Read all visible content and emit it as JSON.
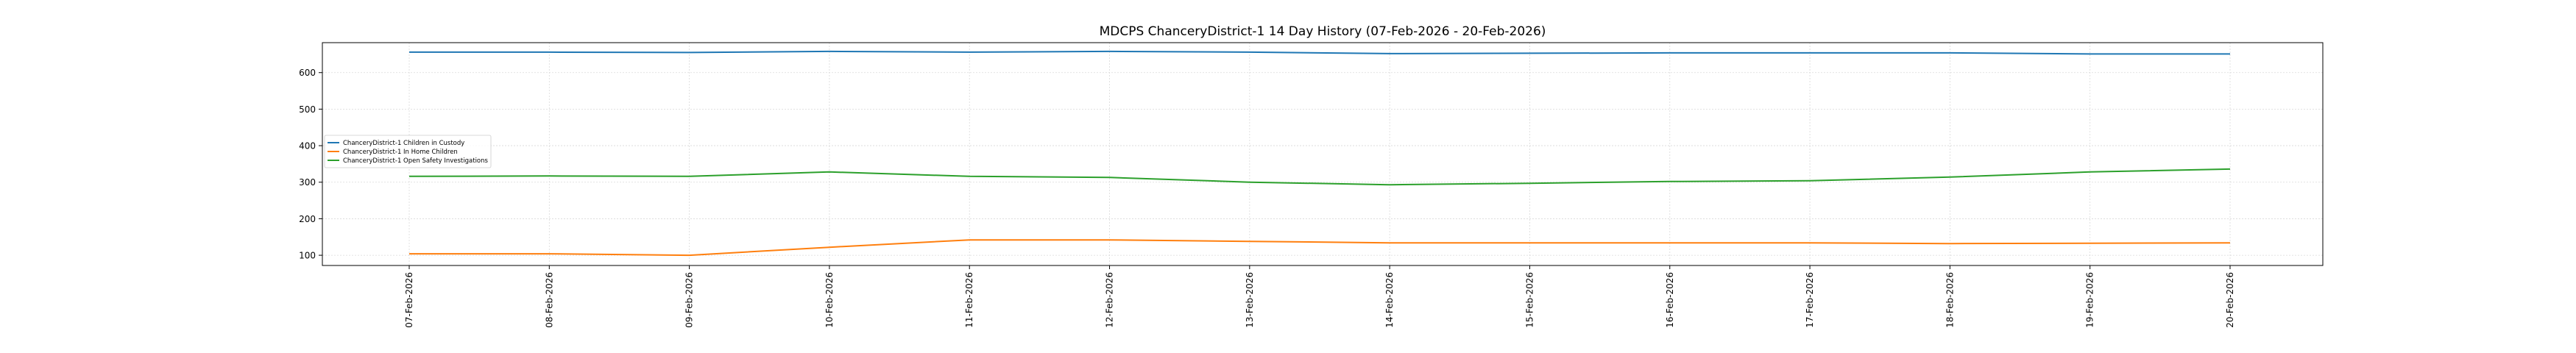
{
  "chart_data": {
    "type": "line",
    "title": "MDCPS ChanceryDistrict-1 14 Day History (07-Feb-2026 - 20-Feb-2026)",
    "xlabel": "",
    "ylabel": "",
    "categories": [
      "07-Feb-2026",
      "08-Feb-2026",
      "09-Feb-2026",
      "10-Feb-2026",
      "11-Feb-2026",
      "12-Feb-2026",
      "13-Feb-2026",
      "14-Feb-2026",
      "15-Feb-2026",
      "16-Feb-2026",
      "17-Feb-2026",
      "18-Feb-2026",
      "19-Feb-2026",
      "20-Feb-2026"
    ],
    "ylim": [
      72,
      682
    ],
    "yticks": [
      100,
      200,
      300,
      400,
      500,
      600
    ],
    "grid": true,
    "legend_position": "center-left",
    "series": [
      {
        "name": "ChanceryDistrict-1 Children in Custody",
        "color": "#1f77b4",
        "values": [
          656,
          656,
          655,
          658,
          656,
          658,
          656,
          652,
          653,
          654,
          654,
          654,
          651,
          651
        ]
      },
      {
        "name": "ChanceryDistrict-1 In Home Children",
        "color": "#ff7f0e",
        "values": [
          104,
          104,
          100,
          122,
          142,
          142,
          138,
          134,
          134,
          134,
          134,
          132,
          133,
          134
        ]
      },
      {
        "name": "ChanceryDistrict-1 Open Safety Investigations",
        "color": "#2ca02c",
        "values": [
          316,
          317,
          316,
          328,
          316,
          313,
          300,
          293,
          297,
          302,
          304,
          314,
          328,
          336
        ]
      }
    ]
  }
}
